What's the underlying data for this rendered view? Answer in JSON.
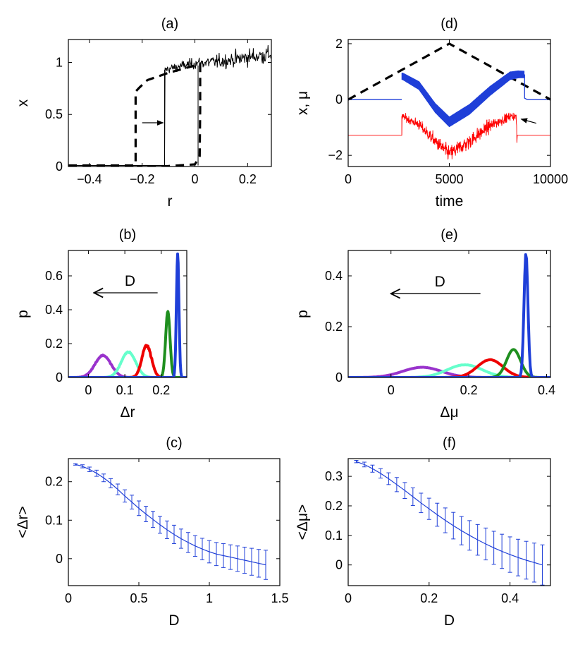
{
  "chart_data": [
    {
      "id": "a",
      "type": "line",
      "title": "(a)",
      "xlabel": "r",
      "ylabel": "x",
      "xlim": [
        -0.48,
        0.29
      ],
      "ylim": [
        0,
        1.22
      ],
      "xticks": [
        -0.4,
        -0.2,
        0,
        0.2
      ],
      "xtick_labels": [
        "−0.4",
        "−0.2",
        "0",
        "0.2"
      ],
      "yticks": [
        0,
        0.5,
        1
      ],
      "ytick_labels": [
        "0",
        "0.5",
        "1"
      ],
      "series": [
        {
          "name": "hysteresis loop (dashed)",
          "color": "#000000",
          "style": "dashed",
          "points": [
            [
              -0.48,
              0.01
            ],
            [
              -0.24,
              0.01
            ],
            [
              -0.225,
              0.02
            ],
            [
              -0.225,
              0.72
            ],
            [
              -0.21,
              0.76
            ],
            [
              -0.18,
              0.83
            ],
            [
              -0.1,
              0.9
            ],
            [
              0,
              0.97
            ],
            [
              0.02,
              0.985
            ],
            [
              0.02,
              0.55
            ],
            [
              0.018,
              0.1
            ],
            [
              0.0,
              0.02
            ],
            [
              -0.1,
              0.005
            ],
            [
              -0.22,
              0.0
            ]
          ]
        },
        {
          "name": "noisy trajectory",
          "color": "#000000",
          "style": "noisy",
          "points": [
            [
              -0.48,
              0.01
            ],
            [
              -0.115,
              0.01
            ],
            [
              -0.115,
              0.93
            ],
            [
              -0.06,
              0.96
            ],
            [
              0,
              0.99
            ],
            [
              0.1,
              1.01
            ],
            [
              0.2,
              1.05
            ],
            [
              0.29,
              1.08
            ]
          ]
        }
      ],
      "annotations": [
        {
          "type": "arrow",
          "from": [
            -0.2,
            0.42
          ],
          "to": [
            -0.12,
            0.42
          ]
        }
      ]
    },
    {
      "id": "d",
      "type": "line",
      "title": "(d)",
      "xlabel": "time",
      "ylabel": "x, μ",
      "xlim": [
        0,
        10000
      ],
      "ylim": [
        -2.4,
        2.15
      ],
      "xticks": [
        0,
        5000,
        10000
      ],
      "xtick_labels": [
        "0",
        "5000",
        "10000"
      ],
      "yticks": [
        -2,
        0,
        2
      ],
      "ytick_labels": [
        "−2",
        "0",
        "2"
      ],
      "series": [
        {
          "name": "ramp (dashed)",
          "color": "#000000",
          "style": "dashed",
          "points": [
            [
              0,
              0
            ],
            [
              5000,
              2
            ],
            [
              10000,
              0
            ]
          ]
        },
        {
          "name": "x (blue band)",
          "color": "#1f3fd8",
          "style": "band",
          "points": [
            [
              0,
              0
            ],
            [
              2650,
              0
            ],
            [
              2650,
              0.85
            ],
            [
              3500,
              0.5
            ],
            [
              4300,
              -0.3
            ],
            [
              5000,
              -0.8
            ],
            [
              6000,
              -0.35
            ],
            [
              7000,
              0.3
            ],
            [
              8000,
              0.85
            ],
            [
              8400,
              0.9
            ],
            [
              8700,
              0.9
            ],
            [
              8750,
              0.05
            ],
            [
              9000,
              0.0
            ],
            [
              10000,
              0.0
            ]
          ]
        },
        {
          "name": "μ (red)",
          "color": "#ff0000",
          "style": "noisy",
          "points": [
            [
              0,
              -1.28
            ],
            [
              2650,
              -1.28
            ],
            [
              2650,
              -0.6
            ],
            [
              3500,
              -0.9
            ],
            [
              4300,
              -1.5
            ],
            [
              5000,
              -1.95
            ],
            [
              6000,
              -1.5
            ],
            [
              7000,
              -0.95
            ],
            [
              8000,
              -0.6
            ],
            [
              8300,
              -0.6
            ],
            [
              8350,
              -1.3
            ],
            [
              10000,
              -1.28
            ]
          ]
        }
      ],
      "annotations": [
        {
          "type": "arrow",
          "from": [
            9300,
            -0.85
          ],
          "to": [
            8550,
            -0.7
          ]
        }
      ]
    },
    {
      "id": "b",
      "type": "line",
      "title": "(b)",
      "xlabel": "Δr",
      "ylabel": "p",
      "xlim": [
        -0.055,
        0.27
      ],
      "ylim": [
        0,
        0.75
      ],
      "xticks": [
        0,
        0.1,
        0.2
      ],
      "xtick_labels": [
        "0",
        "0.1",
        "0.2"
      ],
      "yticks": [
        0,
        0.2,
        0.4,
        0.6
      ],
      "ytick_labels": [
        "0",
        "0.2",
        "0.4",
        "0.6"
      ],
      "series": [
        {
          "name": "purple",
          "color": "#9933cc",
          "peak": 0.04,
          "height": 0.13,
          "width": 0.022,
          "jitter": 0.025
        },
        {
          "name": "aquamarine",
          "color": "#66ffcc",
          "peak": 0.11,
          "height": 0.15,
          "width": 0.02,
          "jitter": 0.03
        },
        {
          "name": "red",
          "color": "#ee0000",
          "peak": 0.16,
          "height": 0.19,
          "width": 0.013,
          "jitter": 0.035
        },
        {
          "name": "green",
          "color": "#1f8f1f",
          "peak": 0.218,
          "height": 0.39,
          "width": 0.006,
          "jitter": 0.0
        },
        {
          "name": "blue",
          "color": "#1f3fd8",
          "peak": 0.245,
          "height": 0.73,
          "width": 0.0035,
          "jitter": 0.0
        }
      ],
      "annotations": [
        {
          "type": "arrow",
          "label": "D",
          "from": [
            0.19,
            0.5
          ],
          "to": [
            0.015,
            0.5
          ]
        }
      ]
    },
    {
      "id": "e",
      "type": "line",
      "title": "(e)",
      "xlabel": "Δμ",
      "ylabel": "p",
      "xlim": [
        -0.11,
        0.41
      ],
      "ylim": [
        0,
        0.5
      ],
      "xticks": [
        0,
        0.2,
        0.4
      ],
      "xtick_labels": [
        "0",
        "0.2",
        "0.4"
      ],
      "yticks": [
        0,
        0.2,
        0.4
      ],
      "ytick_labels": [
        "0",
        "0.2",
        "0.4"
      ],
      "series": [
        {
          "name": "purple",
          "color": "#9933cc",
          "peak": 0.08,
          "height": 0.04,
          "width": 0.05,
          "jitter": 0.01
        },
        {
          "name": "aquamarine",
          "color": "#66ffcc",
          "peak": 0.19,
          "height": 0.05,
          "width": 0.045,
          "jitter": 0.012
        },
        {
          "name": "red",
          "color": "#ee0000",
          "peak": 0.255,
          "height": 0.07,
          "width": 0.033,
          "jitter": 0.01
        },
        {
          "name": "green",
          "color": "#1f8f1f",
          "peak": 0.315,
          "height": 0.11,
          "width": 0.018,
          "jitter": 0.0
        },
        {
          "name": "blue",
          "color": "#1f3fd8",
          "peak": 0.347,
          "height": 0.49,
          "width": 0.005,
          "jitter": 0.0
        }
      ],
      "annotations": [
        {
          "type": "arrow",
          "label": "D",
          "from": [
            0.23,
            0.33
          ],
          "to": [
            0.0,
            0.33
          ]
        }
      ]
    },
    {
      "id": "c",
      "type": "errorbar",
      "title": "(c)",
      "xlabel": "D",
      "ylabel": "<Δr>",
      "xlim": [
        0,
        1.5
      ],
      "ylim": [
        -0.07,
        0.26
      ],
      "xticks": [
        0,
        0.5,
        1,
        1.5
      ],
      "xtick_labels": [
        "0",
        "0.5",
        "1",
        "1.5"
      ],
      "yticks": [
        0,
        0.1,
        0.2
      ],
      "ytick_labels": [
        "0",
        "0.1",
        "0.2"
      ],
      "color": "#1f3fd8",
      "x": [
        0.05,
        0.1,
        0.15,
        0.2,
        0.25,
        0.3,
        0.35,
        0.4,
        0.45,
        0.5,
        0.55,
        0.6,
        0.65,
        0.7,
        0.75,
        0.8,
        0.85,
        0.9,
        0.95,
        1.0,
        1.05,
        1.1,
        1.15,
        1.2,
        1.25,
        1.3,
        1.35,
        1.4
      ],
      "y": [
        0.245,
        0.24,
        0.232,
        0.222,
        0.21,
        0.196,
        0.18,
        0.163,
        0.147,
        0.131,
        0.116,
        0.102,
        0.088,
        0.075,
        0.063,
        0.052,
        0.042,
        0.033,
        0.025,
        0.018,
        0.012,
        0.008,
        0.004,
        0.0,
        -0.004,
        -0.008,
        -0.012,
        -0.016
      ],
      "err": [
        0.002,
        0.004,
        0.006,
        0.008,
        0.01,
        0.012,
        0.014,
        0.016,
        0.018,
        0.019,
        0.02,
        0.021,
        0.022,
        0.023,
        0.024,
        0.025,
        0.026,
        0.027,
        0.028,
        0.029,
        0.03,
        0.031,
        0.032,
        0.033,
        0.034,
        0.035,
        0.036,
        0.038
      ]
    },
    {
      "id": "f",
      "type": "errorbar",
      "title": "(f)",
      "xlabel": "D",
      "ylabel": "<Δμ>",
      "xlim": [
        0,
        0.5
      ],
      "ylim": [
        -0.07,
        0.36
      ],
      "xticks": [
        0,
        0.2,
        0.4
      ],
      "xtick_labels": [
        "0",
        "0.2",
        "0.4"
      ],
      "yticks": [
        0,
        0.1,
        0.2,
        0.3
      ],
      "ytick_labels": [
        "0",
        "0.1",
        "0.2",
        "0.3"
      ],
      "color": "#1f3fd8",
      "x": [
        0.02,
        0.04,
        0.06,
        0.08,
        0.1,
        0.12,
        0.14,
        0.16,
        0.18,
        0.2,
        0.22,
        0.24,
        0.26,
        0.28,
        0.3,
        0.32,
        0.34,
        0.36,
        0.38,
        0.4,
        0.42,
        0.44,
        0.46,
        0.48
      ],
      "y": [
        0.35,
        0.34,
        0.326,
        0.31,
        0.292,
        0.272,
        0.252,
        0.231,
        0.21,
        0.19,
        0.17,
        0.151,
        0.133,
        0.116,
        0.1,
        0.085,
        0.071,
        0.058,
        0.046,
        0.035,
        0.025,
        0.016,
        0.008,
        0.0
      ],
      "err": [
        0.004,
        0.008,
        0.012,
        0.016,
        0.02,
        0.024,
        0.027,
        0.03,
        0.033,
        0.036,
        0.039,
        0.042,
        0.045,
        0.048,
        0.05,
        0.052,
        0.054,
        0.056,
        0.058,
        0.06,
        0.062,
        0.064,
        0.066,
        0.068
      ]
    }
  ]
}
